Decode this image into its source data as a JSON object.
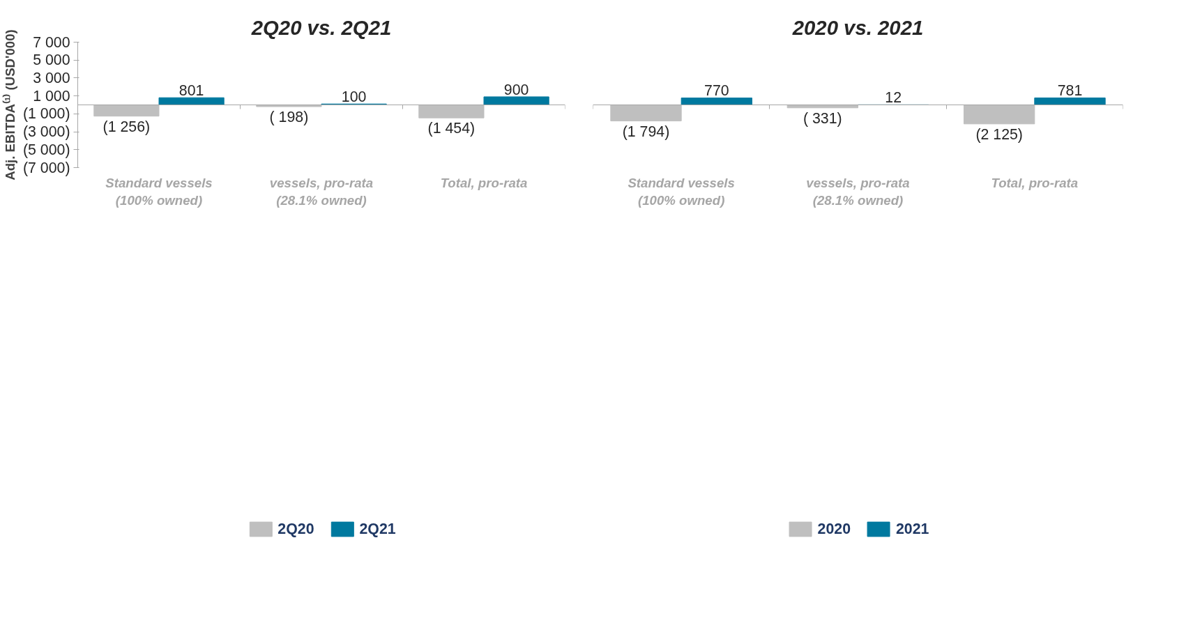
{
  "chart_data": [
    {
      "type": "bar",
      "title": "2Q20 vs. 2Q21",
      "ylabel": "Adj. EBITDA⁽¹⁾ (USD'000)",
      "categories": [
        "Standard vessels (100% owned)",
        "vessels, pro-rata (28.1% owned)",
        "Total, pro-rata"
      ],
      "series": [
        {
          "name": "2Q20",
          "color": "#bfbfbf",
          "values": [
            -1256,
            -198,
            -1454
          ],
          "value_labels": [
            "(1 256)",
            "( 198)",
            "(1 454)"
          ]
        },
        {
          "name": "2Q21",
          "color": "#00799f",
          "values": [
            801,
            100,
            900
          ],
          "value_labels": [
            "801",
            "100",
            "900"
          ]
        }
      ],
      "ylim": [
        -7000,
        7000
      ],
      "yticks": [
        {
          "value": -7000,
          "label": "(7 000)"
        },
        {
          "value": -5000,
          "label": "(5 000)"
        },
        {
          "value": -3000,
          "label": "(3 000)"
        },
        {
          "value": -1000,
          "label": "(1 000)"
        },
        {
          "value": 1000,
          "label": "1 000"
        },
        {
          "value": 3000,
          "label": "3 000"
        },
        {
          "value": 5000,
          "label": "5 000"
        },
        {
          "value": 7000,
          "label": "7 000"
        }
      ],
      "grid": false,
      "legend": "bottom"
    },
    {
      "type": "bar",
      "title": "2020 vs. 2021",
      "categories": [
        "Standard vessels (100% owned)",
        "vessels, pro-rata (28.1% owned)",
        "Total, pro-rata"
      ],
      "series": [
        {
          "name": "2020",
          "color": "#bfbfbf",
          "values": [
            -1794,
            -331,
            -2125
          ],
          "value_labels": [
            "(1 794)",
            "( 331)",
            "(2 125)"
          ]
        },
        {
          "name": "2021",
          "color": "#00799f",
          "values": [
            770,
            12,
            781
          ],
          "value_labels": [
            "770",
            "12",
            "781"
          ]
        }
      ],
      "ylim": [
        -7000,
        7000
      ],
      "grid": false,
      "legend": "bottom",
      "tick_labels": "x"
    }
  ]
}
